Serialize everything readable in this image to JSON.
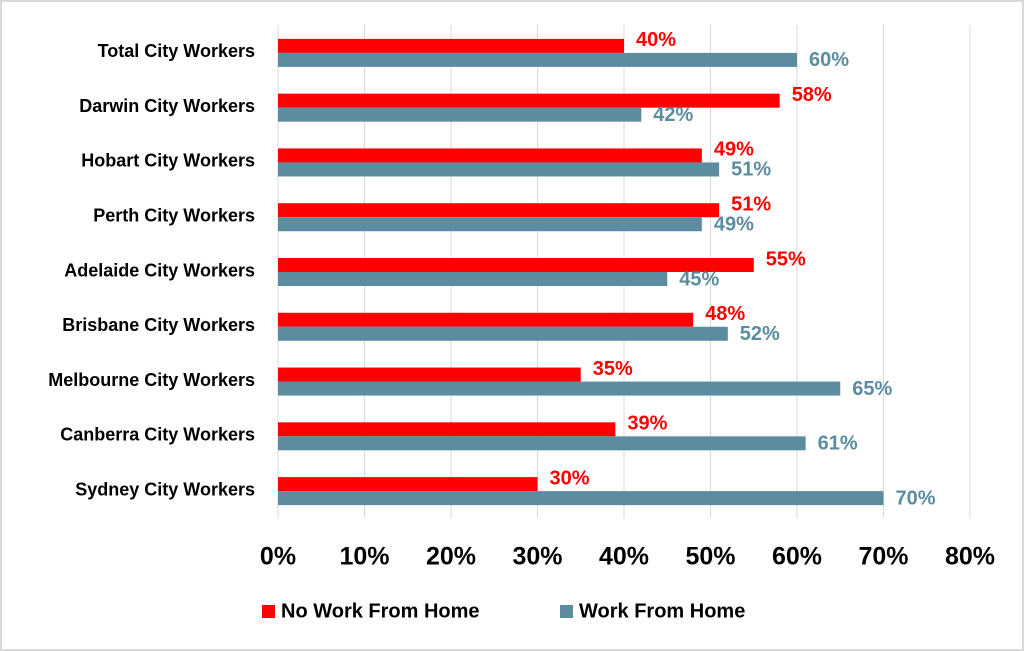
{
  "chart_data": {
    "type": "hbar",
    "categories": [
      "Total City Workers",
      "Darwin City Workers",
      "Hobart City Workers",
      "Perth City Workers",
      "Adelaide City Workers",
      "Brisbane City Workers",
      "Melbourne City Workers",
      "Canberra City Workers",
      "Sydney City Workers"
    ],
    "series": [
      {
        "name": "No Work From Home",
        "color": "#ff0000",
        "values": [
          40,
          58,
          49,
          51,
          55,
          48,
          35,
          39,
          30
        ],
        "value_labels": [
          "40%",
          "58%",
          "49%",
          "51%",
          "55%",
          "48%",
          "35%",
          "39%",
          "30%"
        ]
      },
      {
        "name": "Work From Home",
        "color": "#5b8ca0",
        "values": [
          60,
          42,
          51,
          49,
          45,
          52,
          65,
          61,
          70
        ],
        "value_labels": [
          "60%",
          "42%",
          "51%",
          "49%",
          "45%",
          "52%",
          "65%",
          "61%",
          "70%"
        ]
      }
    ],
    "xlim": [
      0,
      80
    ],
    "xticks": [
      {
        "value": 0,
        "label": "0%"
      },
      {
        "value": 10,
        "label": "10%"
      },
      {
        "value": 20,
        "label": "20%"
      },
      {
        "value": 30,
        "label": "30%"
      },
      {
        "value": 40,
        "label": "40%"
      },
      {
        "value": 50,
        "label": "50%"
      },
      {
        "value": 60,
        "label": "60%"
      },
      {
        "value": 70,
        "label": "70%"
      },
      {
        "value": 80,
        "label": "80%"
      }
    ],
    "grid": true,
    "legend": "bottom"
  }
}
